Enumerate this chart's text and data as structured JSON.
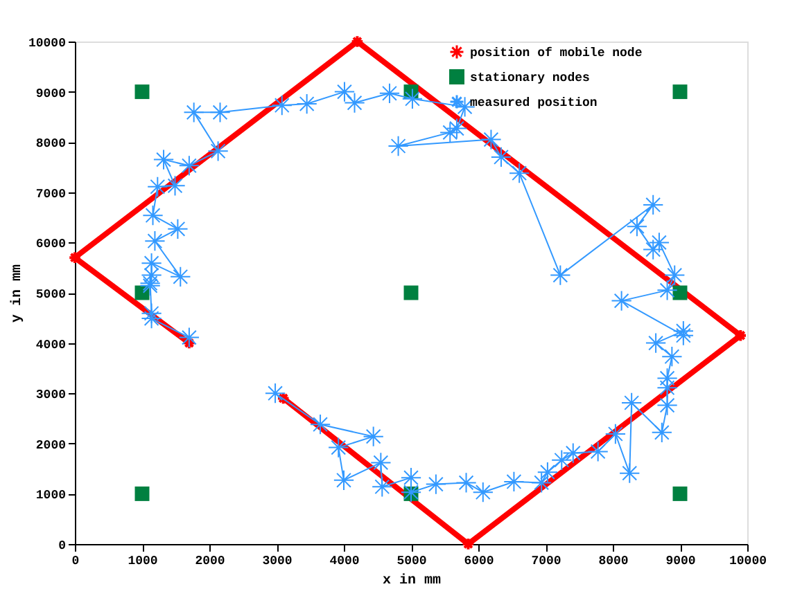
{
  "chart_data": {
    "type": "line",
    "xlabel": "x in mm",
    "ylabel": "y in mm",
    "xlim": [
      0,
      10000
    ],
    "ylim": [
      0,
      10000
    ],
    "xticks": [
      0,
      1000,
      2000,
      3000,
      4000,
      5000,
      6000,
      7000,
      8000,
      9000,
      10000
    ],
    "yticks": [
      0,
      1000,
      2000,
      3000,
      4000,
      5000,
      6000,
      7000,
      8000,
      9000,
      10000
    ],
    "grid": false,
    "legend": "top right",
    "series": [
      {
        "name": "position of mobile node",
        "marker": "cross",
        "color": "#ff0000",
        "x": [
          3100,
          5850,
          9900,
          4200,
          0,
          1700
        ],
        "values": [
          2900,
          0,
          4150,
          10000,
          5700,
          4000
        ]
      },
      {
        "name": "stationary nodes",
        "type": "scatter",
        "marker": "square",
        "color": "#008040",
        "x": [
          1000,
          5000,
          9000,
          1000,
          5000,
          9000,
          1000,
          5000,
          9000
        ],
        "values": [
          9000,
          9000,
          9000,
          5000,
          5000,
          5000,
          1000,
          1000,
          1000
        ]
      },
      {
        "name": "measured position",
        "marker": "cross",
        "color": "#3399ff",
        "x": [
          2980,
          3650,
          4440,
          3920,
          4000,
          4550,
          4570,
          5000,
          5000,
          5370,
          5820,
          6070,
          6530,
          6940,
          7030,
          7240,
          7410,
          7780,
          8040,
          8250,
          8280,
          8730,
          8810,
          8810,
          8810,
          8880,
          8640,
          9050,
          9050,
          8130,
          8810,
          8920,
          8690,
          8600,
          8360,
          8600,
          7220,
          6610,
          6340,
          6190,
          4810,
          5580,
          5680,
          5800,
          5020,
          4680,
          4160,
          4010,
          3450,
          3080,
          2160,
          1770,
          2130,
          1700,
          1320,
          1490,
          1230,
          1160,
          1530,
          1190,
          1570,
          1140,
          1140,
          1120,
          1120,
          1140,
          1140,
          1700
        ],
        "values": [
          3000,
          2380,
          2140,
          1920,
          1270,
          1620,
          1140,
          1320,
          1030,
          1190,
          1220,
          1030,
          1240,
          1220,
          1430,
          1670,
          1810,
          1840,
          2190,
          1410,
          2810,
          2220,
          2760,
          3110,
          3300,
          3730,
          4000,
          4240,
          4150,
          4840,
          5050,
          5350,
          6000,
          5860,
          6320,
          6750,
          5350,
          7380,
          7700,
          8050,
          7920,
          8190,
          8270,
          8700,
          8860,
          8970,
          8780,
          9000,
          8760,
          8730,
          8590,
          8590,
          7820,
          7530,
          7650,
          7130,
          7110,
          6540,
          6270,
          6030,
          5320,
          5590,
          5350,
          5140,
          5190,
          4590,
          4490,
          4110
        ]
      }
    ]
  }
}
